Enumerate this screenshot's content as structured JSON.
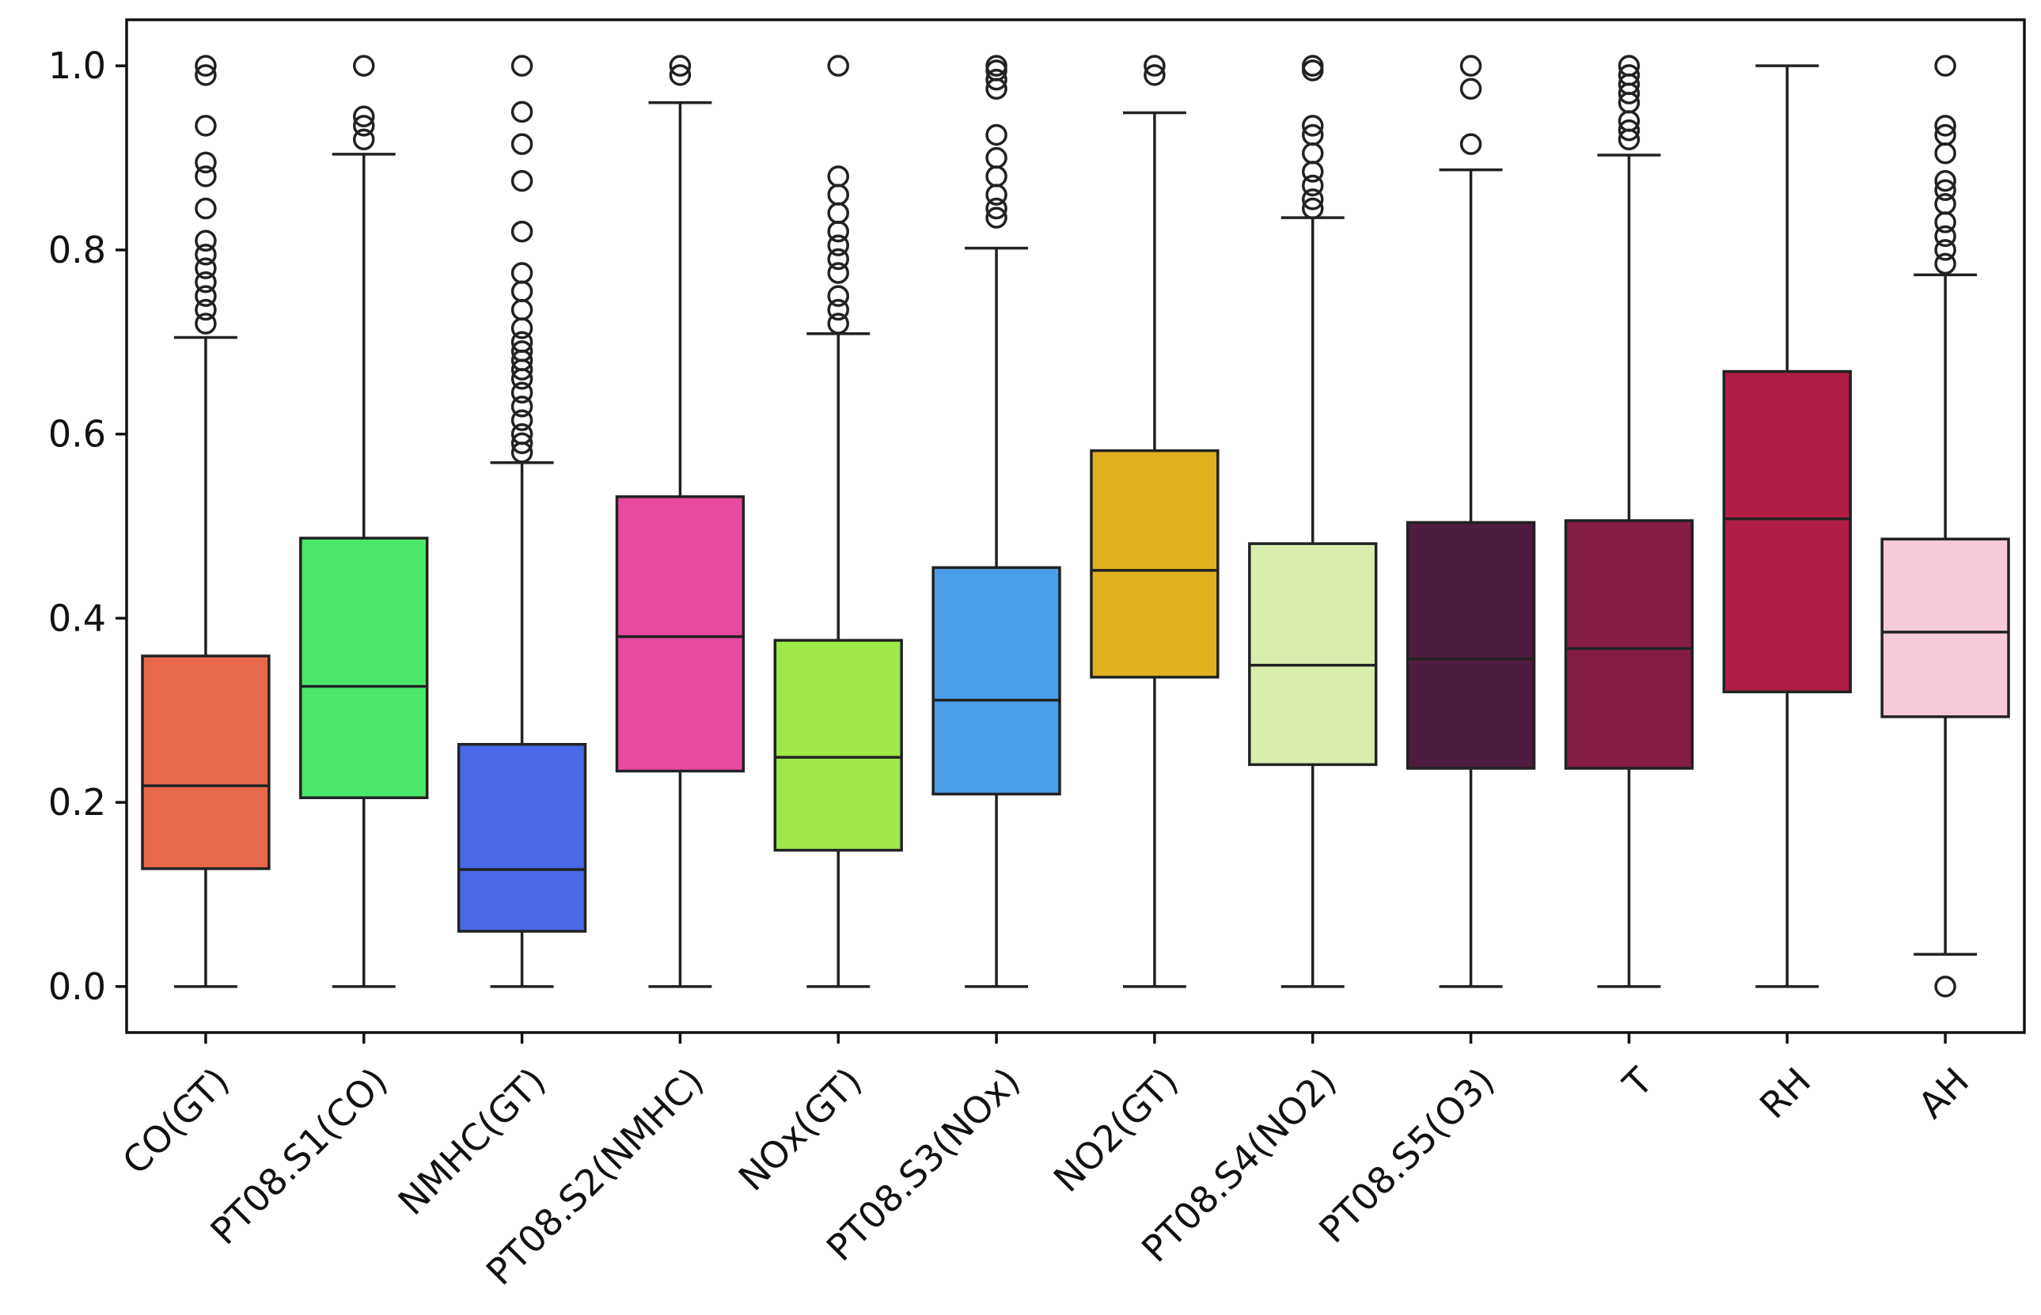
{
  "chart_data": {
    "type": "box",
    "title": "",
    "xlabel": "",
    "ylabel": "",
    "ylim": [
      -0.05,
      1.05
    ],
    "yticks": [
      0.0,
      0.2,
      0.4,
      0.6,
      0.8,
      1.0
    ],
    "ytick_labels": [
      "0.0",
      "0.2",
      "0.4",
      "0.6",
      "0.8",
      "1.0"
    ],
    "grid": false,
    "legend": "none",
    "categories": [
      "CO(GT)",
      "PT08.S1(CO)",
      "NMHC(GT)",
      "PT08.S2(NMHC)",
      "NOx(GT)",
      "PT08.S3(NOx)",
      "NO2(GT)",
      "PT08.S4(NO2)",
      "PT08.S5(O3)",
      "T",
      "RH",
      "AH"
    ],
    "boxes": [
      {
        "category": "CO(GT)",
        "color": "#e8694a",
        "whisker_low": 0.0,
        "q1": 0.128,
        "median": 0.218,
        "q3": 0.359,
        "whisker_high": 0.705,
        "outliers": [
          0.72,
          0.735,
          0.75,
          0.765,
          0.78,
          0.795,
          0.81,
          0.845,
          0.88,
          0.895,
          0.935,
          0.99,
          1.0
        ]
      },
      {
        "category": "PT08.S1(CO)",
        "color": "#4ae86a",
        "whisker_low": 0.0,
        "q1": 0.205,
        "median": 0.326,
        "q3": 0.487,
        "whisker_high": 0.904,
        "outliers": [
          0.92,
          0.935,
          0.945,
          1.0
        ]
      },
      {
        "category": "NMHC(GT)",
        "color": "#4a68e8",
        "whisker_low": 0.0,
        "q1": 0.06,
        "median": 0.127,
        "q3": 0.263,
        "whisker_high": 0.569,
        "outliers": [
          0.58,
          0.59,
          0.6,
          0.615,
          0.63,
          0.645,
          0.66,
          0.67,
          0.68,
          0.69,
          0.7,
          0.715,
          0.735,
          0.755,
          0.775,
          0.82,
          0.875,
          0.915,
          0.95,
          1.0
        ]
      },
      {
        "category": "PT08.S2(NMHC)",
        "color": "#e84a9e",
        "whisker_low": 0.0,
        "q1": 0.234,
        "median": 0.38,
        "q3": 0.532,
        "whisker_high": 0.96,
        "outliers": [
          0.99,
          1.0
        ]
      },
      {
        "category": "NOx(GT)",
        "color": "#9ee84a",
        "whisker_low": 0.0,
        "q1": 0.148,
        "median": 0.249,
        "q3": 0.376,
        "whisker_high": 0.709,
        "outliers": [
          0.72,
          0.735,
          0.75,
          0.775,
          0.79,
          0.805,
          0.82,
          0.84,
          0.86,
          0.88,
          1.0
        ]
      },
      {
        "category": "PT08.S3(NOx)",
        "color": "#4a9ee8",
        "whisker_low": 0.0,
        "q1": 0.209,
        "median": 0.311,
        "q3": 0.455,
        "whisker_high": 0.802,
        "outliers": [
          0.835,
          0.845,
          0.86,
          0.88,
          0.9,
          0.925,
          0.975,
          0.985,
          0.995,
          1.0
        ]
      },
      {
        "category": "NO2(GT)",
        "color": "#e0b020",
        "whisker_low": 0.0,
        "q1": 0.336,
        "median": 0.452,
        "q3": 0.582,
        "whisker_high": 0.949,
        "outliers": [
          0.99,
          1.0
        ]
      },
      {
        "category": "PT08.S4(NO2)",
        "color": "#d9eead",
        "whisker_low": 0.0,
        "q1": 0.241,
        "median": 0.349,
        "q3": 0.481,
        "whisker_high": 0.835,
        "outliers": [
          0.845,
          0.855,
          0.87,
          0.885,
          0.905,
          0.925,
          0.935,
          0.995,
          1.0
        ]
      },
      {
        "category": "PT08.S5(O3)",
        "color": "#4e1c3e",
        "whisker_low": 0.0,
        "q1": 0.237,
        "median": 0.356,
        "q3": 0.504,
        "whisker_high": 0.887,
        "outliers": [
          0.915,
          0.975,
          1.0
        ]
      },
      {
        "category": "T",
        "color": "#841c44",
        "whisker_low": 0.0,
        "q1": 0.237,
        "median": 0.367,
        "q3": 0.506,
        "whisker_high": 0.903,
        "outliers": [
          0.92,
          0.93,
          0.94,
          0.96,
          0.97,
          0.98,
          0.99,
          1.0
        ]
      },
      {
        "category": "RH",
        "color": "#b01c44",
        "whisker_low": 0.0,
        "q1": 0.32,
        "median": 0.508,
        "q3": 0.668,
        "whisker_high": 1.0,
        "outliers": []
      },
      {
        "category": "AH",
        "color": "#f6cad6",
        "whisker_low": 0.035,
        "q1": 0.293,
        "median": 0.385,
        "q3": 0.486,
        "whisker_high": 0.773,
        "outliers": [
          0.0,
          0.785,
          0.8,
          0.815,
          0.83,
          0.85,
          0.865,
          0.875,
          0.905,
          0.925,
          0.935,
          1.0
        ]
      }
    ]
  }
}
